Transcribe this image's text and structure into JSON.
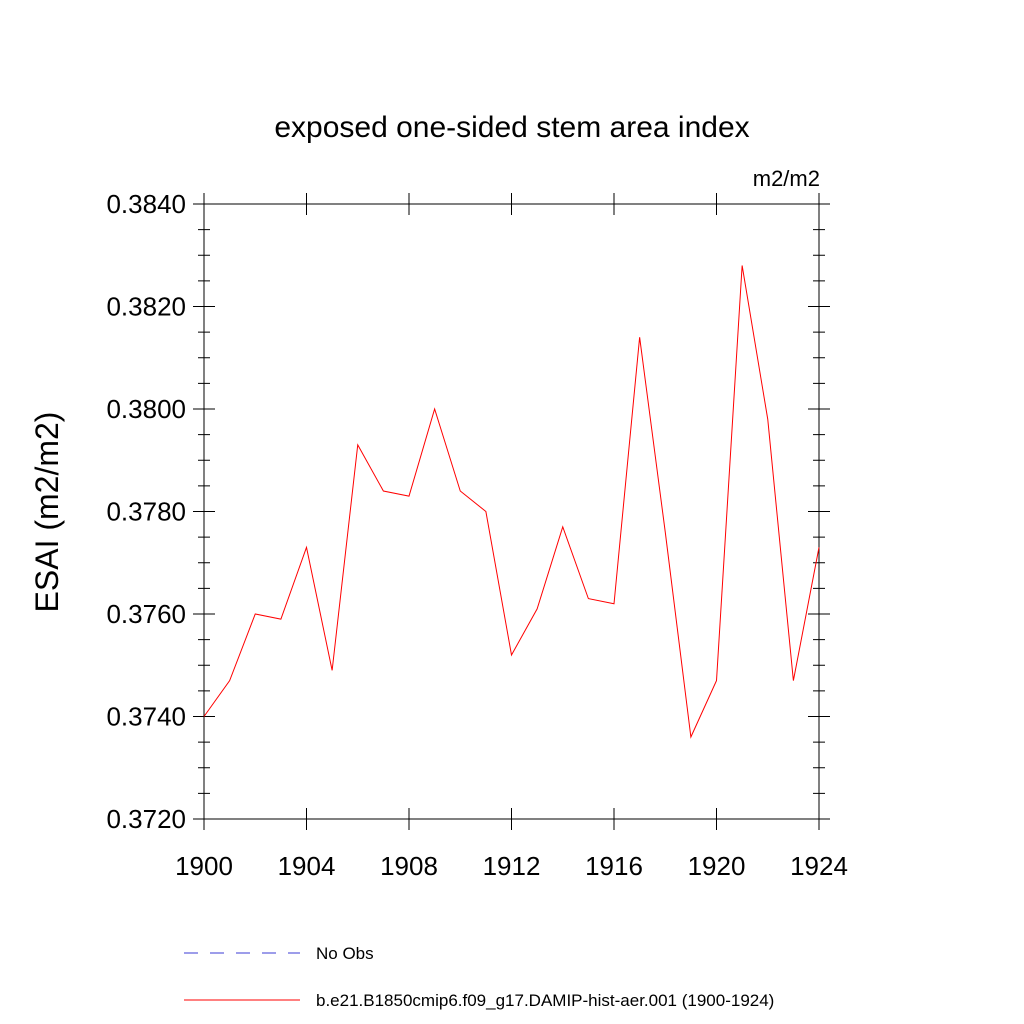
{
  "chart_data": {
    "type": "line",
    "title": "exposed one-sided stem area index",
    "units_label": "m2/m2",
    "ylabel": "ESAI  (m2/m2)",
    "xlabel": "",
    "xlim": [
      1900,
      1924
    ],
    "ylim": [
      0.372,
      0.384
    ],
    "x_ticks": [
      1900,
      1904,
      1908,
      1912,
      1916,
      1920,
      1924
    ],
    "x_tick_labels": [
      "1900",
      "1904",
      "1908",
      "1912",
      "1916",
      "1920",
      "1924"
    ],
    "y_ticks": [
      0.372,
      0.374,
      0.376,
      0.378,
      0.38,
      0.382,
      0.384
    ],
    "y_tick_labels": [
      "0.3720",
      "0.3740",
      "0.3760",
      "0.3780",
      "0.3800",
      "0.3820",
      "0.3840"
    ],
    "grid": false,
    "legend_placement": "bottom",
    "series": [
      {
        "name": "No Obs",
        "color": "#3b3bd4",
        "style": "dashed",
        "x": [],
        "y": []
      },
      {
        "name": "b.e21.B1850cmip6.f09_g17.DAMIP-hist-aer.001 (1900-1924)",
        "color": "#ff0000",
        "style": "solid",
        "x": [
          1900,
          1901,
          1902,
          1903,
          1904,
          1905,
          1906,
          1907,
          1908,
          1909,
          1910,
          1911,
          1912,
          1913,
          1914,
          1915,
          1916,
          1917,
          1918,
          1919,
          1920,
          1921,
          1922,
          1923,
          1924
        ],
        "y": [
          0.374,
          0.3747,
          0.376,
          0.3759,
          0.3773,
          0.3749,
          0.3793,
          0.3784,
          0.3783,
          0.38,
          0.3784,
          0.378,
          0.3752,
          0.3761,
          0.3777,
          0.3763,
          0.3762,
          0.3814,
          0.3776,
          0.3736,
          0.3747,
          0.3828,
          0.3798,
          0.3747,
          0.3773
        ]
      }
    ]
  }
}
